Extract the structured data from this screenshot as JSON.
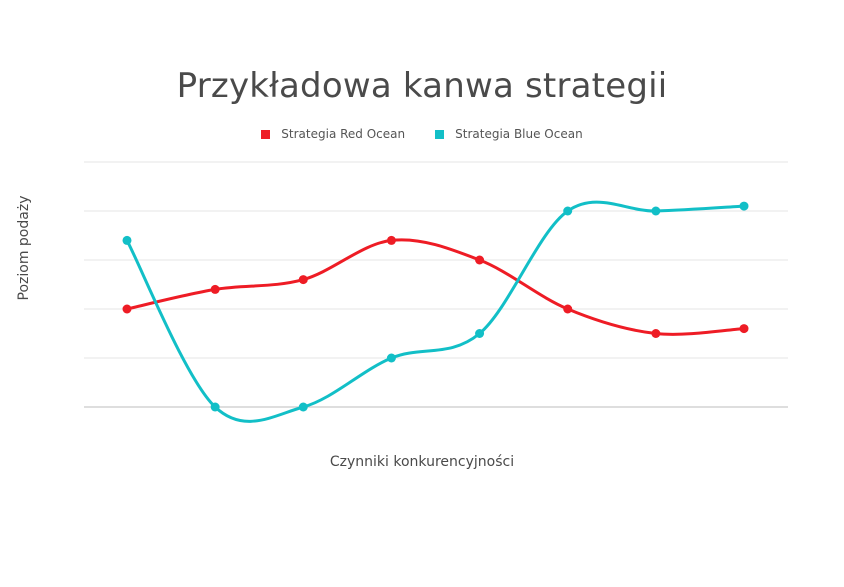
{
  "chart_data": {
    "type": "line",
    "title": "Przykładowa kanwa strategii",
    "xlabel": "Czynniki konkurencyjności",
    "ylabel": "Poziom podaży",
    "x": [
      1,
      2,
      3,
      4,
      5,
      6,
      7,
      8
    ],
    "ylim": [
      0,
      5
    ],
    "grid": true,
    "legend_position": "top",
    "series": [
      {
        "name": "Strategia Red Ocean",
        "color": "#ee1c25",
        "values": [
          2.0,
          2.4,
          2.6,
          3.4,
          3.0,
          2.0,
          1.5,
          1.6
        ]
      },
      {
        "name": "Strategia Blue Ocean",
        "color": "#12bfc7",
        "values": [
          3.4,
          0.0,
          0.0,
          1.0,
          1.5,
          4.0,
          4.0,
          4.1
        ]
      }
    ]
  }
}
